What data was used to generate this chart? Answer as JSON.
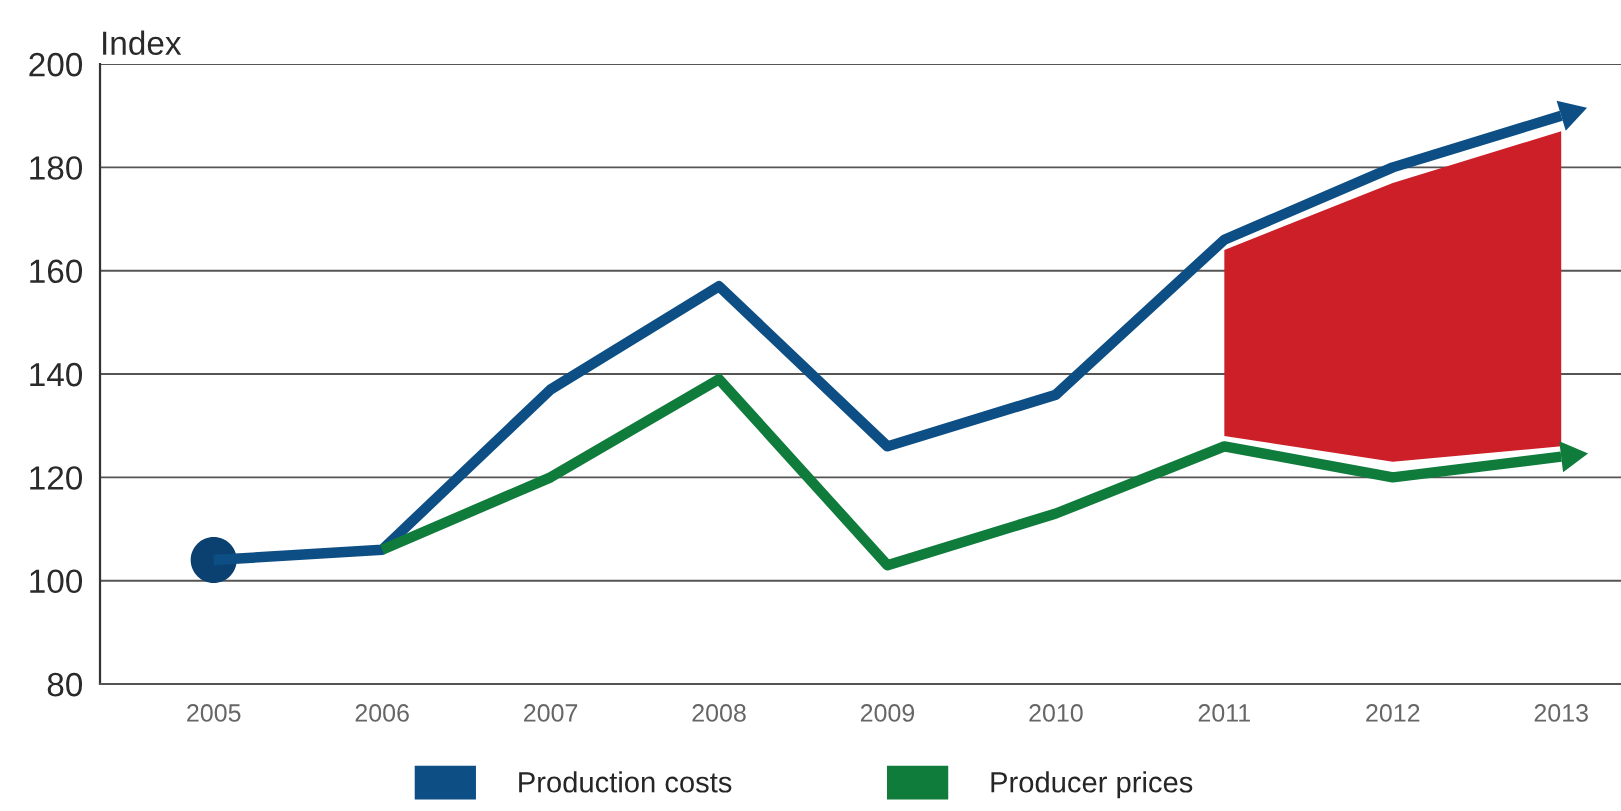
{
  "chart_data": {
    "type": "line",
    "ylabel": "Index",
    "categories": [
      "2005",
      "2006",
      "2007",
      "2008",
      "2009",
      "2010",
      "2011",
      "2012",
      "2013"
    ],
    "series": [
      {
        "type": "area",
        "color": "#cc1f27",
        "values": [
          null,
          null,
          null,
          null,
          null,
          null,
          null,
          null,
          null
        ],
        "upper": [
          null,
          null,
          null,
          null,
          null,
          null,
          164,
          177,
          187
        ],
        "lower": [
          null,
          null,
          null,
          null,
          null,
          null,
          128,
          123,
          126
        ]
      },
      {
        "name": "Production costs",
        "color": "#0d4f85",
        "values": [
          104,
          106,
          137,
          157,
          126,
          136,
          166,
          180,
          190
        ]
      },
      {
        "name": "Producer prices",
        "color": "#0f7c3c",
        "values": [
          null,
          106,
          120,
          139,
          103,
          113,
          126,
          120,
          124
        ]
      },
      {
        "type": "scatter",
        "color": "#0a4170",
        "marker": "circle",
        "values": [
          104,
          null,
          null,
          null,
          null,
          null,
          null,
          null,
          null
        ]
      }
    ],
    "ylim": [
      80,
      200
    ],
    "yticks": [
      80,
      100,
      120,
      140,
      160,
      180,
      200
    ],
    "grid": "y",
    "legend": "bottom"
  }
}
